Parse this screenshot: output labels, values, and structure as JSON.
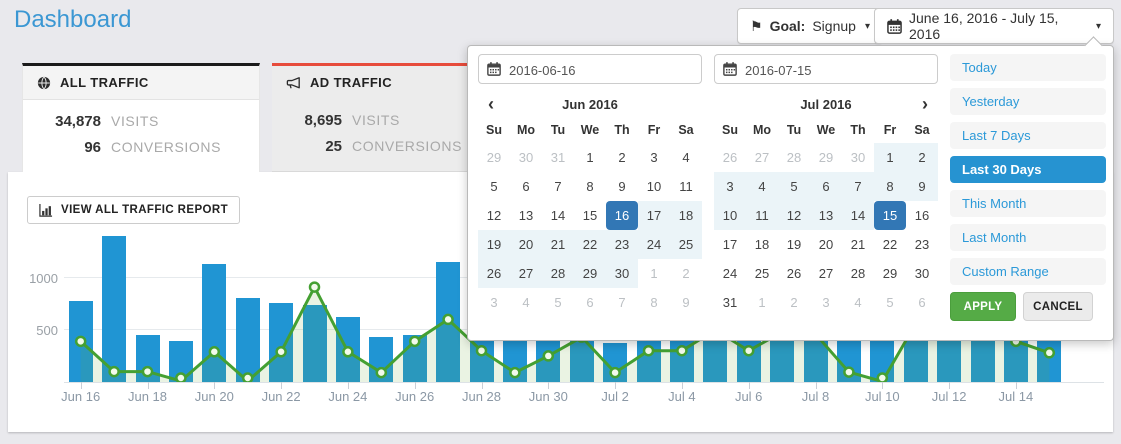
{
  "page": {
    "title": "Dashboard"
  },
  "header": {
    "goal_button": {
      "label": "Goal:",
      "value": "Signup"
    },
    "date_range_button": {
      "label": "June 16, 2016 - July 15, 2016"
    }
  },
  "traffic_cards": [
    {
      "title": "ALL TRAFFIC",
      "visits": "34,878",
      "visits_label": "VISITS",
      "conversions": "96",
      "conversions_label": "CONVERSIONS",
      "accent": "#1b1b1b",
      "active": true
    },
    {
      "title": "AD TRAFFIC",
      "visits": "8,695",
      "visits_label": "VISITS",
      "conversions": "25",
      "conversions_label": "CONVERSIONS",
      "accent": "#e74c3c",
      "active": false
    }
  ],
  "report_button": {
    "label": "VIEW ALL TRAFFIC REPORT"
  },
  "datepicker": {
    "start_input": "2016-06-16",
    "end_input": "2016-07-15",
    "dow": [
      "Su",
      "Mo",
      "Tu",
      "We",
      "Th",
      "Fr",
      "Sa"
    ],
    "calendars": [
      {
        "title": "Jun 2016",
        "nav_prev": "‹",
        "nav_next": "",
        "days": [
          [
            "29",
            "out"
          ],
          [
            "30",
            "out"
          ],
          [
            "31",
            "out"
          ],
          [
            "1",
            ""
          ],
          [
            "2",
            ""
          ],
          [
            "3",
            ""
          ],
          [
            "4",
            ""
          ],
          [
            "5",
            ""
          ],
          [
            "6",
            ""
          ],
          [
            "7",
            ""
          ],
          [
            "8",
            ""
          ],
          [
            "9",
            ""
          ],
          [
            "10",
            ""
          ],
          [
            "11",
            ""
          ],
          [
            "12",
            ""
          ],
          [
            "13",
            ""
          ],
          [
            "14",
            ""
          ],
          [
            "15",
            ""
          ],
          [
            "16",
            "sel"
          ],
          [
            "17",
            "in"
          ],
          [
            "18",
            "in"
          ],
          [
            "19",
            "in"
          ],
          [
            "20",
            "in"
          ],
          [
            "21",
            "in"
          ],
          [
            "22",
            "in"
          ],
          [
            "23",
            "in"
          ],
          [
            "24",
            "in"
          ],
          [
            "25",
            "in"
          ],
          [
            "26",
            "in"
          ],
          [
            "27",
            "in"
          ],
          [
            "28",
            "in"
          ],
          [
            "29",
            "in"
          ],
          [
            "30",
            "in"
          ],
          [
            "1",
            "out"
          ],
          [
            "2",
            "out"
          ],
          [
            "3",
            "out"
          ],
          [
            "4",
            "out"
          ],
          [
            "5",
            "out"
          ],
          [
            "6",
            "out"
          ],
          [
            "7",
            "out"
          ],
          [
            "8",
            "out"
          ],
          [
            "9",
            "out"
          ]
        ]
      },
      {
        "title": "Jul 2016",
        "nav_prev": "",
        "nav_next": "›",
        "days": [
          [
            "26",
            "out"
          ],
          [
            "27",
            "out"
          ],
          [
            "28",
            "out"
          ],
          [
            "29",
            "out"
          ],
          [
            "30",
            "out"
          ],
          [
            "1",
            "in"
          ],
          [
            "2",
            "in"
          ],
          [
            "3",
            "in"
          ],
          [
            "4",
            "in"
          ],
          [
            "5",
            "in"
          ],
          [
            "6",
            "in"
          ],
          [
            "7",
            "in"
          ],
          [
            "8",
            "in"
          ],
          [
            "9",
            "in"
          ],
          [
            "10",
            "in"
          ],
          [
            "11",
            "in"
          ],
          [
            "12",
            "in"
          ],
          [
            "13",
            "in"
          ],
          [
            "14",
            "in"
          ],
          [
            "15",
            "sel"
          ],
          [
            "16",
            ""
          ],
          [
            "17",
            ""
          ],
          [
            "18",
            ""
          ],
          [
            "19",
            ""
          ],
          [
            "20",
            ""
          ],
          [
            "21",
            ""
          ],
          [
            "22",
            ""
          ],
          [
            "23",
            ""
          ],
          [
            "24",
            ""
          ],
          [
            "25",
            ""
          ],
          [
            "26",
            ""
          ],
          [
            "27",
            ""
          ],
          [
            "28",
            ""
          ],
          [
            "29",
            ""
          ],
          [
            "30",
            ""
          ],
          [
            "31",
            ""
          ],
          [
            "1",
            "out"
          ],
          [
            "2",
            "out"
          ],
          [
            "3",
            "out"
          ],
          [
            "4",
            "out"
          ],
          [
            "5",
            "out"
          ],
          [
            "6",
            "out"
          ]
        ]
      }
    ],
    "presets": [
      {
        "label": "Today",
        "active": false
      },
      {
        "label": "Yesterday",
        "active": false
      },
      {
        "label": "Last 7 Days",
        "active": false
      },
      {
        "label": "Last 30 Days",
        "active": true
      },
      {
        "label": "This Month",
        "active": false
      },
      {
        "label": "Last Month",
        "active": false
      },
      {
        "label": "Custom Range",
        "active": false
      }
    ],
    "apply_label": "APPLY",
    "cancel_label": "CANCEL"
  },
  "colors": {
    "title_blue": "#3b97d3",
    "bar_blue": "#2095d3",
    "line_green": "#44a032",
    "selected_day_blue": "#3277b5",
    "active_preset_blue": "#2693d1",
    "apply_green": "#55ab46",
    "all_traffic_accent": "#1b1b1b",
    "ad_traffic_accent": "#e74c3c"
  },
  "chart_data": {
    "type": "bar",
    "title": "",
    "xlabel": "",
    "ylabel": "",
    "ylim": [
      0,
      1400
    ],
    "yticks": [
      500,
      1000
    ],
    "grid": true,
    "legend_position": "none",
    "categories": [
      "Jun 16",
      "Jun 17",
      "Jun 18",
      "Jun 19",
      "Jun 20",
      "Jun 21",
      "Jun 22",
      "Jun 23",
      "Jun 24",
      "Jun 25",
      "Jun 26",
      "Jun 27",
      "Jun 28",
      "Jun 29",
      "Jun 30",
      "Jul 1",
      "Jul 2",
      "Jul 3",
      "Jul 4",
      "Jul 5",
      "Jul 6",
      "Jul 7",
      "Jul 8",
      "Jul 9",
      "Jul 10",
      "Jul 11",
      "Jul 12",
      "Jul 13",
      "Jul 14",
      "Jul 15"
    ],
    "x_tick_labels": [
      "Jun 16",
      "Jun 18",
      "Jun 20",
      "Jun 22",
      "Jun 24",
      "Jun 26",
      "Jun 28",
      "Jun 30",
      "Jul 2",
      "Jul 4",
      "Jul 6",
      "Jul 8",
      "Jul 10",
      "Jul 12",
      "Jul 14"
    ],
    "note": "values for days Jun 28 - Jul 15 (except short bars and low line points) are partially occluded by the date picker popup; they are best estimates",
    "series": [
      {
        "name": "visits",
        "type": "bar",
        "color": "#2095d3",
        "values": [
          780,
          1400,
          450,
          390,
          1130,
          810,
          760,
          740,
          620,
          430,
          450,
          1150,
          900,
          820,
          860,
          950,
          370,
          880,
          760,
          900,
          820,
          1000,
          870,
          780,
          900,
          950,
          830,
          780,
          900,
          820
        ]
      },
      {
        "name": "conversions",
        "type": "line",
        "color": "#44a032",
        "values": [
          390,
          100,
          100,
          10,
          290,
          10,
          290,
          910,
          290,
          90,
          390,
          600,
          300,
          90,
          250,
          430,
          90,
          300,
          300,
          500,
          300,
          480,
          460,
          95,
          5,
          560,
          600,
          500,
          390,
          280
        ]
      }
    ]
  }
}
